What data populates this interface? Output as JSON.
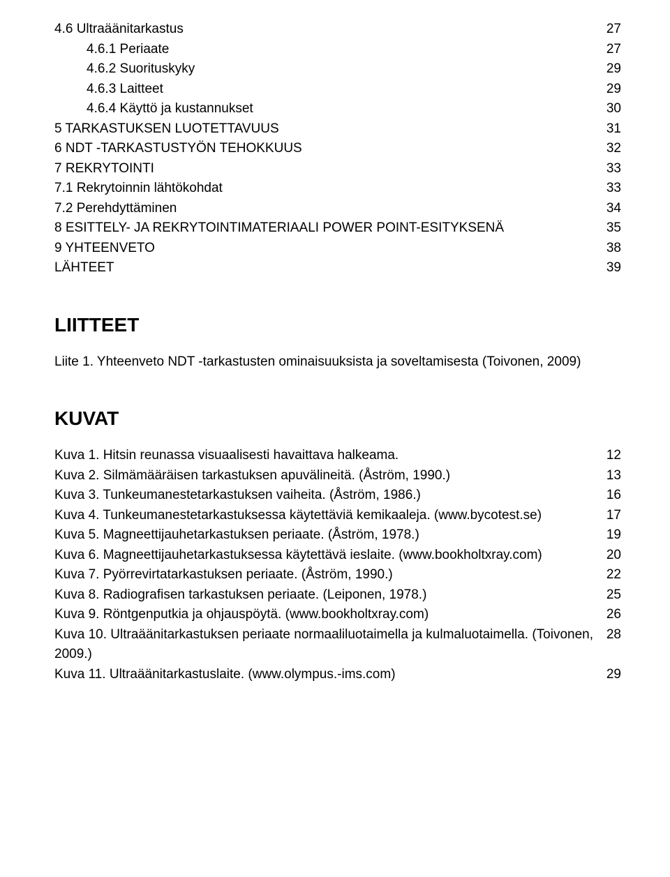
{
  "toc": [
    {
      "indent": 0,
      "label": "4.6 Ultraäänitarkastus",
      "page": "27"
    },
    {
      "indent": 1,
      "label": "4.6.1 Periaate",
      "page": "27"
    },
    {
      "indent": 1,
      "label": "4.6.2 Suorituskyky",
      "page": "29"
    },
    {
      "indent": 1,
      "label": "4.6.3 Laitteet",
      "page": "29"
    },
    {
      "indent": 1,
      "label": "4.6.4 Käyttö ja kustannukset",
      "page": "30"
    },
    {
      "indent": 0,
      "label": "5 TARKASTUKSEN LUOTETTAVUUS",
      "page": "31"
    },
    {
      "indent": 0,
      "label": "6 NDT -TARKASTUSTYÖN TEHOKKUUS",
      "page": "32"
    },
    {
      "indent": 0,
      "label": "7 REKRYTOINTI",
      "page": "33"
    },
    {
      "indent": 0,
      "label": "7.1 Rekrytoinnin lähtökohdat",
      "page": "33"
    },
    {
      "indent": 0,
      "label": "7.2 Perehdyttäminen",
      "page": "34"
    },
    {
      "indent": 0,
      "label": "8 ESITTELY- JA REKRYTOINTIMATERIAALI POWER POINT-ESITYKSENÄ",
      "page": "35"
    },
    {
      "indent": 0,
      "label": "9 YHTEENVETO",
      "page": "38"
    },
    {
      "indent": 0,
      "label": "LÄHTEET",
      "page": "39"
    }
  ],
  "liitteet_heading": "LIITTEET",
  "liite_line": "Liite 1. Yhteenveto NDT -tarkastusten ominaisuuksista ja soveltamisesta (Toivonen, 2009)",
  "kuvat_heading": "KUVAT",
  "kuvat": [
    {
      "label": "Kuva 1. Hitsin reunassa visuaalisesti havaittava halkeama.",
      "page": "12"
    },
    {
      "label": "Kuva 2. Silmämääräisen tarkastuksen apuvälineitä. (Åström, 1990.)",
      "page": "13"
    },
    {
      "label": "Kuva 3. Tunkeumanestetarkastuksen vaiheita. (Åström, 1986.)",
      "page": "16"
    },
    {
      "label": "Kuva 4. Tunkeumanestetarkastuksessa käytettäviä kemikaaleja. (www.bycotest.se)",
      "page": "17"
    },
    {
      "label": "Kuva 5. Magneettijauhetarkastuksen periaate. (Åström, 1978.)",
      "page": "19"
    },
    {
      "label": "Kuva 6. Magneettijauhetarkastuksessa käytettävä ieslaite. (www.bookholtxray.com)",
      "page": "20"
    },
    {
      "label": "Kuva 7. Pyörrevirtatarkastuksen periaate. (Åström, 1990.)",
      "page": "22"
    },
    {
      "label": "Kuva 8. Radiografisen tarkastuksen periaate. (Leiponen, 1978.)",
      "page": "25"
    },
    {
      "label": "Kuva 9. Röntgenputkia ja ohjauspöytä. (www.bookholtxray.com)",
      "page": "26"
    },
    {
      "label": "Kuva 10. Ultraäänitarkastuksen periaate normaaliluotaimella ja kulmaluotaimella. (Toivonen, 2009.)",
      "page": "28"
    },
    {
      "label": "Kuva 11. Ultraäänitarkastuslaite. (www.olympus.-ims.com)",
      "page": "29"
    }
  ]
}
